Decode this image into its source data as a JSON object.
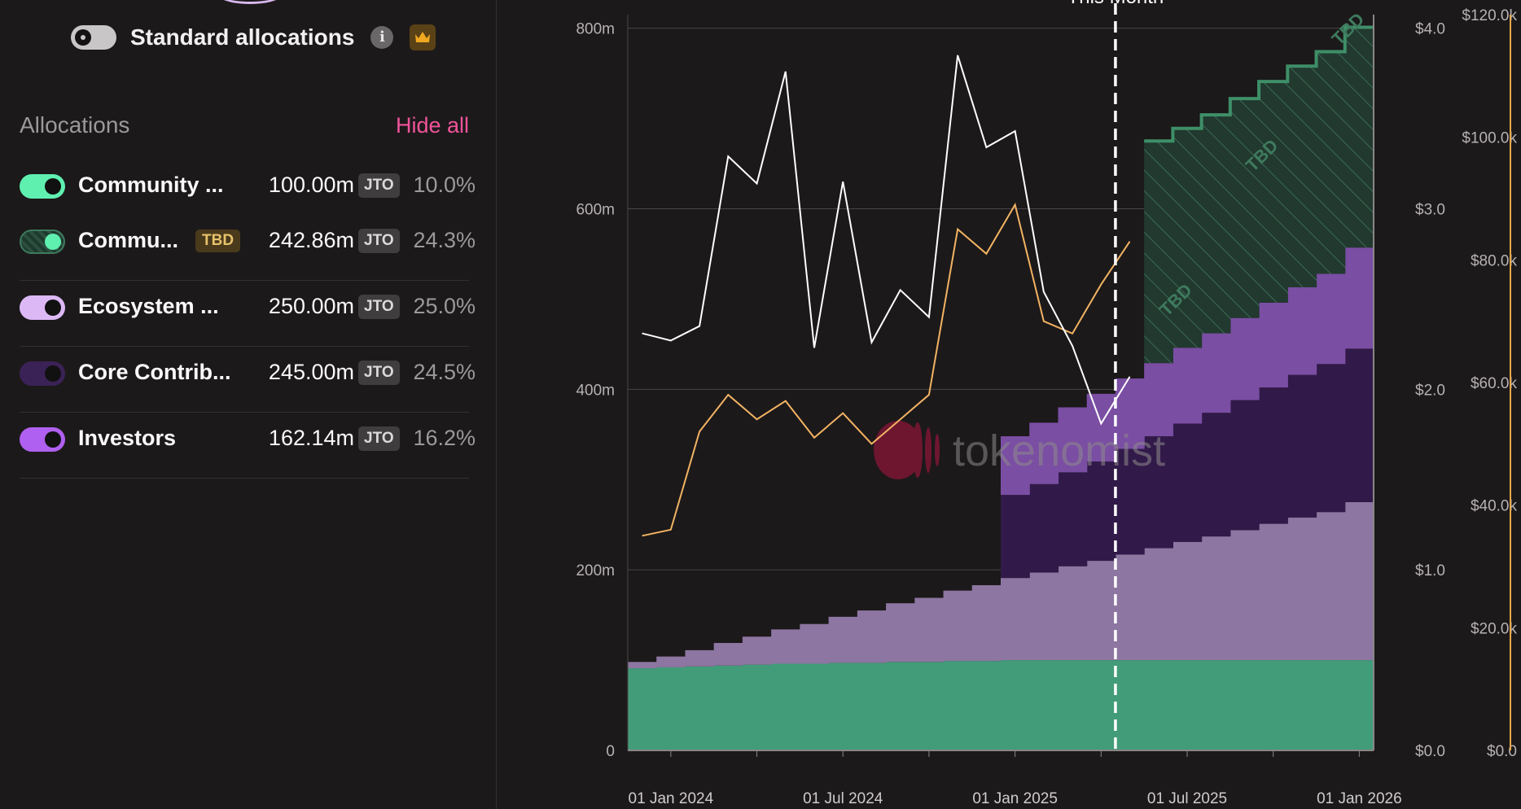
{
  "header": {
    "standard_allocations_label": "Standard allocations"
  },
  "allocations": {
    "title": "Allocations",
    "hide_all_label": "Hide all",
    "items": [
      {
        "name": "Community ...",
        "tag": "",
        "amount": "100.00m",
        "token": "JTO",
        "percent": "10.0%",
        "color": "#5ff0b0",
        "style": "solid"
      },
      {
        "name": "Commu...",
        "tag": "TBD",
        "amount": "242.86m",
        "token": "JTO",
        "percent": "24.3%",
        "color": "#3e7a5e",
        "style": "hatched"
      },
      {
        "name": "Ecosystem ...",
        "tag": "",
        "amount": "250.00m",
        "token": "JTO",
        "percent": "25.0%",
        "color": "#dcb8f5",
        "style": "solid"
      },
      {
        "name": "Core Contrib...",
        "tag": "",
        "amount": "245.00m",
        "token": "JTO",
        "percent": "24.5%",
        "color": "#3b2256",
        "style": "solid"
      },
      {
        "name": "Investors",
        "tag": "",
        "amount": "162.14m",
        "token": "JTO",
        "percent": "16.2%",
        "color": "#b060f0",
        "style": "solid"
      }
    ]
  },
  "chart_data": {
    "type": "area",
    "stacked": true,
    "marker": {
      "label": "This Month",
      "x": "2025-05"
    },
    "watermark": "tokenomist",
    "tbd_label": "TBD",
    "x_ticks": [
      "01 Jan 2024",
      "01 Jul 2024",
      "01 Jan 2025",
      "01 Jul 2025",
      "01 Jan 2026"
    ],
    "y_ticks": [
      "0",
      "200m",
      "400m",
      "600m",
      "800m"
    ],
    "y2_ticks": [
      "$0.0",
      "$1.0",
      "$2.0",
      "$3.0",
      "$4.0"
    ],
    "y3_ticks": [
      "$0.0",
      "$20.0k",
      "$40.0k",
      "$60.0k",
      "$80.0k",
      "$100.0k",
      "$120.0k"
    ],
    "ylim": [
      0,
      815
    ],
    "y2lim": [
      0,
      4.075
    ],
    "y3lim": [
      0,
      120
    ],
    "months": [
      "2023-12",
      "2024-01",
      "2024-02",
      "2024-03",
      "2024-04",
      "2024-05",
      "2024-06",
      "2024-07",
      "2024-08",
      "2024-09",
      "2024-10",
      "2024-11",
      "2024-12",
      "2025-01",
      "2025-02",
      "2025-03",
      "2025-04",
      "2025-05",
      "2025-06",
      "2025-07",
      "2025-08",
      "2025-09",
      "2025-10",
      "2025-11",
      "2025-12",
      "2026-01"
    ],
    "series": [
      {
        "name": "Community ...",
        "color": "#429c79",
        "values": [
          91,
          92,
          93,
          94,
          95,
          96,
          96,
          97,
          97,
          98,
          98,
          99,
          99,
          100,
          100,
          100,
          100,
          100,
          100,
          100,
          100,
          100,
          100,
          100,
          100,
          100
        ]
      },
      {
        "name": "Ecosystem ...",
        "color": "#8d76a1",
        "values": [
          7,
          12,
          18,
          25,
          31,
          38,
          44,
          51,
          58,
          65,
          71,
          78,
          84,
          91,
          97,
          104,
          110,
          117,
          124,
          131,
          137,
          144,
          151,
          158,
          164,
          175
        ]
      },
      {
        "name": "Core Contrib...",
        "color": "#311a49",
        "values": [
          0,
          0,
          0,
          0,
          0,
          0,
          0,
          0,
          0,
          0,
          0,
          0,
          0,
          92,
          98,
          104,
          110,
          117,
          124,
          131,
          137,
          144,
          151,
          158,
          164,
          170
        ]
      },
      {
        "name": "Investors",
        "color": "#7a4ea3",
        "values": [
          0,
          0,
          0,
          0,
          0,
          0,
          0,
          0,
          0,
          0,
          0,
          0,
          0,
          65,
          68,
          72,
          75,
          78,
          81,
          84,
          88,
          91,
          94,
          97,
          100,
          112
        ]
      },
      {
        "name": "Commu...",
        "color": "#2c5a46",
        "values": [
          0,
          0,
          0,
          0,
          0,
          0,
          0,
          0,
          0,
          0,
          0,
          0,
          0,
          0,
          0,
          0,
          0,
          0,
          246,
          243,
          242,
          243,
          245,
          245,
          246,
          244
        ]
      }
    ],
    "price_usd": [
      2.31,
      2.27,
      2.35,
      3.29,
      3.14,
      3.76,
      2.23,
      3.15,
      2.26,
      2.55,
      2.4,
      3.85,
      3.34,
      3.43,
      2.54,
      2.24,
      1.81,
      2.07
    ],
    "market_value_k": [
      35,
      36,
      52,
      58,
      54,
      57,
      51,
      55,
      50,
      54,
      58,
      85,
      81,
      89,
      70,
      68,
      76,
      83
    ]
  }
}
